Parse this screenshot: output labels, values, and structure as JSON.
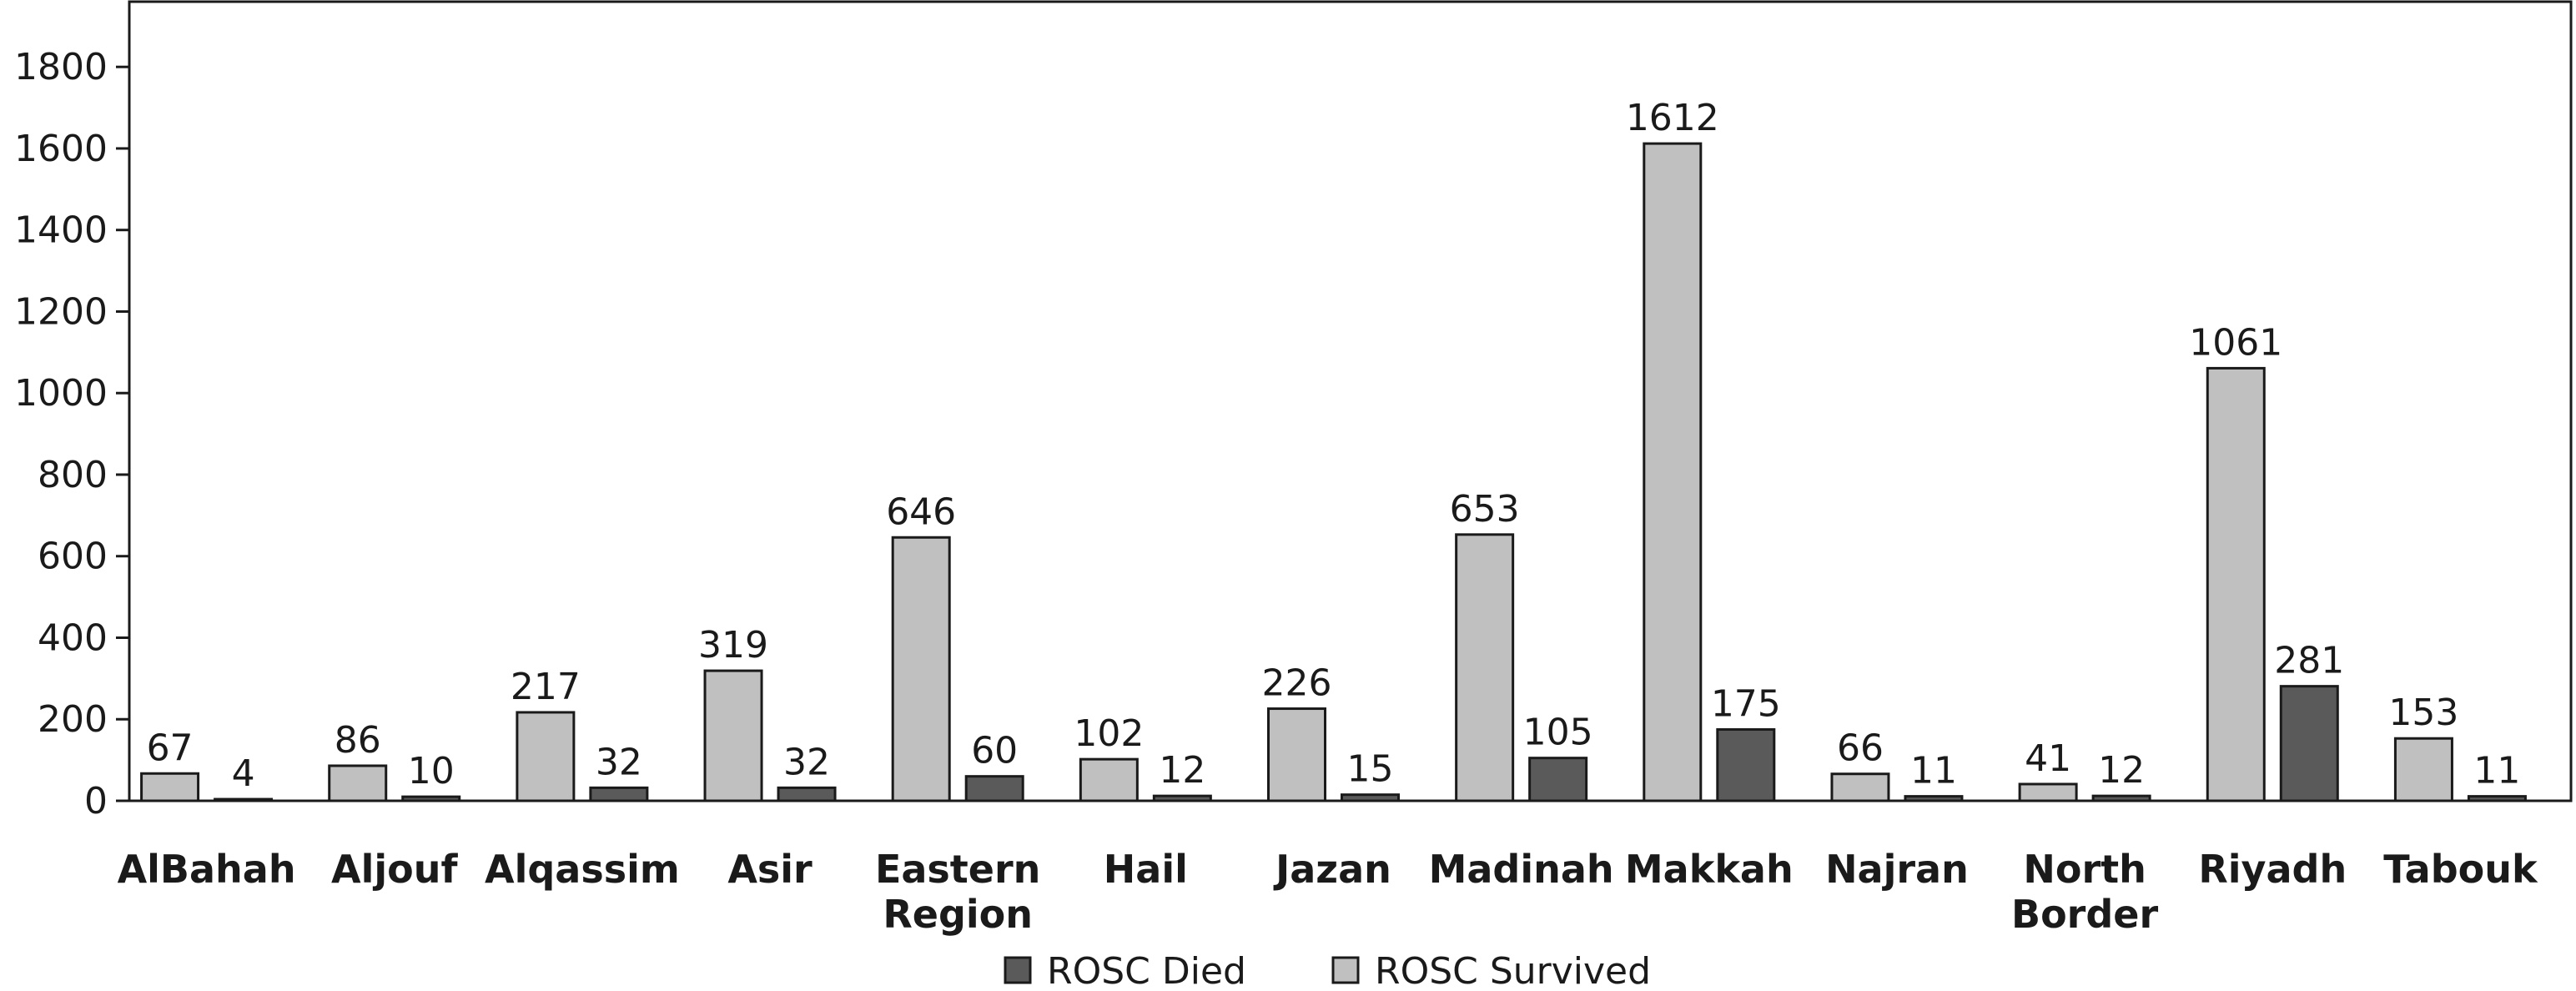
{
  "chart_data": {
    "type": "bar",
    "categories": [
      [
        "AlBahah"
      ],
      [
        "Aljouf"
      ],
      [
        "Alqassim"
      ],
      [
        "Asir"
      ],
      [
        "Eastern",
        "Region"
      ],
      [
        "Hail"
      ],
      [
        "Jazan"
      ],
      [
        "Madinah"
      ],
      [
        "Makkah"
      ],
      [
        "Najran"
      ],
      [
        "North",
        "Border"
      ],
      [
        "Riyadh"
      ],
      [
        "Tabouk"
      ]
    ],
    "series": [
      {
        "name": "ROSC Survived",
        "color": "#c0c0c0",
        "values": [
          67,
          86,
          217,
          319,
          646,
          102,
          226,
          653,
          1612,
          66,
          41,
          1061,
          153
        ]
      },
      {
        "name": "ROSC Died",
        "color": "#5a5a5a",
        "values": [
          4,
          10,
          32,
          32,
          60,
          12,
          15,
          105,
          175,
          11,
          12,
          281,
          11
        ]
      }
    ],
    "yticks": [
      0,
      200,
      400,
      600,
      800,
      1000,
      1200,
      1400,
      1600,
      1800
    ],
    "ylim": [
      0,
      1960
    ],
    "title": "",
    "xlabel": "",
    "ylabel": "",
    "grid": false,
    "legend": {
      "position": "bottom-center",
      "order": [
        "ROSC Died",
        "ROSC Survived"
      ]
    }
  }
}
